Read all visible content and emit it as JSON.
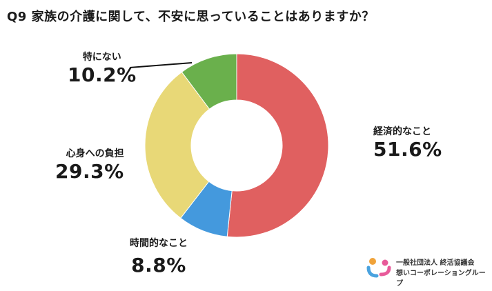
{
  "title": "Q9 家族の介護に関して、不安に思っていることはありますか？",
  "chart_data": {
    "type": "pie",
    "donut": true,
    "title": "Q9 家族の介護に関して、不安に思っていることはありますか？",
    "slices": [
      {
        "label": "経済的なこと",
        "value": 51.6,
        "display": "51.6%",
        "color": "#e06060"
      },
      {
        "label": "時間的なこと",
        "value": 8.8,
        "display": "8.8%",
        "color": "#4499dd"
      },
      {
        "label": "心身への負担",
        "value": 29.3,
        "display": "29.3%",
        "color": "#e8d877"
      },
      {
        "label": "特にない",
        "value": 10.2,
        "display": "10.2%",
        "color": "#6ab04c"
      }
    ]
  },
  "logo": {
    "line1": "一般社団法人 終活協議会",
    "line2": "想いコーポレーショングループ"
  }
}
